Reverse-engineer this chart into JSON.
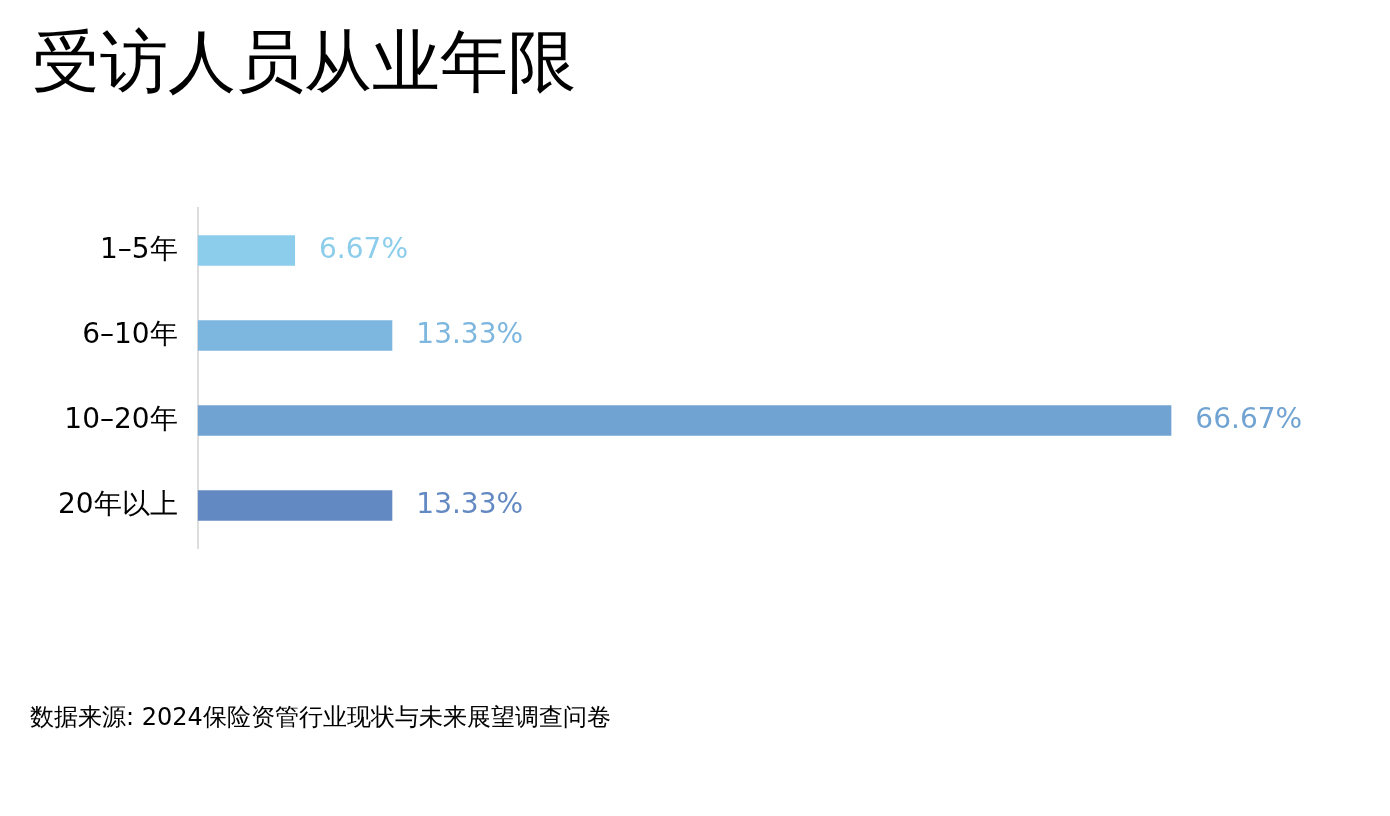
{
  "chart_data": {
    "type": "bar",
    "title": "受访人员从业年限",
    "categories": [
      "1–5年",
      "6–10年",
      "10–20年",
      "20年以上"
    ],
    "values": [
      6.67,
      13.33,
      66.67,
      13.33
    ],
    "colors": [
      "#8ccdec",
      "#7db6df",
      "#70a3d2",
      "#6389c2"
    ],
    "orientation": "horizontal",
    "value_labels": [
      "6.67%",
      "13.33%",
      "66.67%",
      "13.33%"
    ],
    "tick_labels": "y",
    "annotations": [
      "数据来源: 2024保险资管行业现状与未来展望调查问卷"
    ]
  }
}
